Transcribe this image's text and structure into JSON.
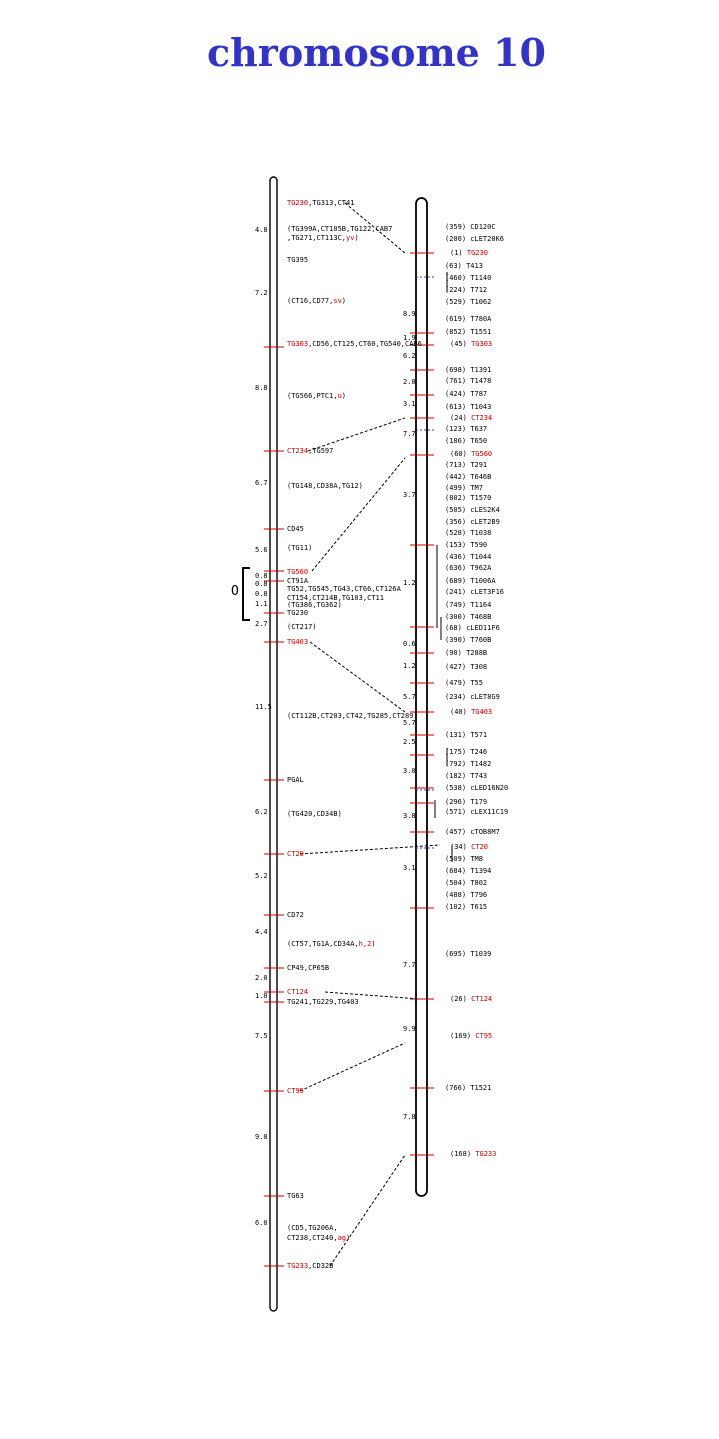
{
  "title": "chromosome 10",
  "colors": {
    "title": "#3333cc",
    "locus_highlight": "#cc0000",
    "tick": "#cc0000",
    "line": "#000000"
  },
  "left_map": {
    "distances": [
      "4.8",
      "7.2",
      "8.8",
      "6.7",
      "5.6",
      "0.8",
      "0.8",
      "0.8",
      "1.1",
      "2.7",
      "11.5",
      "6.2",
      "5.2",
      "4.4",
      "2.0",
      "1.0",
      "7.5",
      "9.0",
      "6.0"
    ],
    "loci": [
      {
        "segments": [
          {
            "text": "TG230",
            "red": true
          },
          {
            "text": ",TG313,CT41",
            "red": false
          }
        ]
      },
      {
        "segments": [
          {
            "text": "(TG399A,CT105B,TG122,CAB7",
            "red": false
          }
        ]
      },
      {
        "segments": [
          {
            "text": ",TG271,CT113C,",
            "red": false
          },
          {
            "text": "yv",
            "red": true
          },
          {
            "text": ")",
            "red": false
          }
        ]
      },
      {
        "segments": [
          {
            "text": "TG395",
            "red": false
          }
        ]
      },
      {
        "segments": [
          {
            "text": "(CT16,CD77,",
            "red": false
          },
          {
            "text": "sv",
            "red": true
          },
          {
            "text": ")",
            "red": false
          }
        ]
      },
      {
        "segments": [
          {
            "text": "TG303",
            "red": true
          },
          {
            "text": ",CD56,CT125,CT60,TG540,CAB6",
            "red": false
          }
        ]
      },
      {
        "segments": [
          {
            "text": "(TG566,PTC1,",
            "red": false
          },
          {
            "text": "u",
            "red": true
          },
          {
            "text": ")",
            "red": false
          }
        ]
      },
      {
        "segments": [
          {
            "text": "CT234",
            "red": true
          },
          {
            "text": ",TG597",
            "red": false
          }
        ]
      },
      {
        "segments": [
          {
            "text": "(TG148,CD38A,TG12)",
            "red": false
          }
        ]
      },
      {
        "segments": [
          {
            "text": "CD45",
            "red": false
          }
        ]
      },
      {
        "segments": [
          {
            "text": "(TG11)",
            "red": false
          }
        ]
      },
      {
        "segments": [
          {
            "text": "TG560",
            "red": true
          }
        ]
      },
      {
        "segments": [
          {
            "text": "CT91A",
            "red": false
          }
        ]
      },
      {
        "segments": [
          {
            "text": "TG52,TG545,TG43,CT66,CT126A",
            "red": false
          }
        ]
      },
      {
        "segments": [
          {
            "text": "CT154,CT214B,TG103,CT11",
            "red": false
          }
        ]
      },
      {
        "segments": [
          {
            "text": "(TG386,TG362)",
            "red": false
          }
        ]
      },
      {
        "segments": [
          {
            "text": "TG230",
            "red": false
          }
        ]
      },
      {
        "segments": [
          {
            "text": "(CT217)",
            "red": false
          }
        ]
      },
      {
        "segments": [
          {
            "text": "TG403",
            "red": true
          }
        ]
      },
      {
        "segments": [
          {
            "text": "(CT112B,CT203,CT42,TG285,CT289)",
            "red": false
          }
        ]
      },
      {
        "segments": [
          {
            "text": "PGAL",
            "red": false
          }
        ]
      },
      {
        "segments": [
          {
            "text": "(TG420,CD34B)",
            "red": false
          }
        ]
      },
      {
        "segments": [
          {
            "text": "CT20",
            "red": true
          }
        ]
      },
      {
        "segments": [
          {
            "text": "CD72",
            "red": false
          }
        ]
      },
      {
        "segments": [
          {
            "text": "(CT57,TG1A,CD34A,",
            "red": false
          },
          {
            "text": "h,2",
            "red": true
          },
          {
            "text": ")",
            "red": false
          }
        ]
      },
      {
        "segments": [
          {
            "text": "CP49,CP65B",
            "red": false
          }
        ]
      },
      {
        "segments": [
          {
            "text": "CT124",
            "red": true
          }
        ]
      },
      {
        "segments": [
          {
            "text": "TG241,TG229,TG403",
            "red": false
          }
        ]
      },
      {
        "segments": [
          {
            "text": "CT95",
            "red": true
          }
        ]
      },
      {
        "segments": [
          {
            "text": "TG63",
            "red": false
          }
        ]
      },
      {
        "segments": [
          {
            "text": "(CD5,TG206A,",
            "red": false
          }
        ]
      },
      {
        "segments": [
          {
            "text": "CT238,CT240,",
            "red": false
          },
          {
            "text": "ag",
            "red": true
          },
          {
            "text": ")",
            "red": false
          }
        ]
      },
      {
        "segments": [
          {
            "text": "TG233",
            "red": true
          },
          {
            "text": ",CD32B",
            "red": false
          }
        ]
      }
    ]
  },
  "right_map": {
    "distances": [
      "8.9",
      "1.9",
      "6.2",
      "2.0",
      "3.1",
      "7.7",
      "3.7",
      "1.2",
      "0.6",
      "1.2",
      "5.7",
      "5.7",
      "2.5",
      "3.0",
      "3.8",
      "3.1",
      "7.7",
      "9.9",
      "7.8"
    ],
    "loci": [
      {
        "count": "(359)",
        "name": "CD120C",
        "red": false
      },
      {
        "count": "(200)",
        "name": "cLET20K6",
        "red": false
      },
      {
        "count": "(1)",
        "name": "TG230",
        "red": true
      },
      {
        "count": "(63)",
        "name": "T413",
        "red": false
      },
      {
        "count": "(460)",
        "name": "T1140",
        "red": false
      },
      {
        "count": "(224)",
        "name": "T712",
        "red": false
      },
      {
        "count": "(529)",
        "name": "T1062",
        "red": false
      },
      {
        "count": "(619)",
        "name": "T780A",
        "red": false
      },
      {
        "count": "(852)",
        "name": "T1551",
        "red": false
      },
      {
        "count": "(45)",
        "name": "TG303",
        "red": true
      },
      {
        "count": "(698)",
        "name": "T1391",
        "red": false
      },
      {
        "count": "(761)",
        "name": "T1478",
        "red": false
      },
      {
        "count": "(424)",
        "name": "T787",
        "red": false
      },
      {
        "count": "(613)",
        "name": "T1043",
        "red": false
      },
      {
        "count": "(24)",
        "name": "CT234",
        "red": true
      },
      {
        "count": "(123)",
        "name": "T637",
        "red": false
      },
      {
        "count": "(186)",
        "name": "T650",
        "red": false
      },
      {
        "count": "(60)",
        "name": "TG560",
        "red": true
      },
      {
        "count": "(713)",
        "name": "T291",
        "red": false
      },
      {
        "count": "(442)",
        "name": "T646B",
        "red": false
      },
      {
        "count": "(499)",
        "name": "TM7",
        "red": false
      },
      {
        "count": "(802)",
        "name": "T1570",
        "red": false
      },
      {
        "count": "(505)",
        "name": "cLES2K4",
        "red": false
      },
      {
        "count": "(356)",
        "name": "cLET2B9",
        "red": false
      },
      {
        "count": "(528)",
        "name": "T1038",
        "red": false
      },
      {
        "count": "(153)",
        "name": "T590",
        "red": false
      },
      {
        "count": "(436)",
        "name": "T1044",
        "red": false
      },
      {
        "count": "(636)",
        "name": "T962A",
        "red": false
      },
      {
        "count": "(689)",
        "name": "T1006A",
        "red": false
      },
      {
        "count": "(241)",
        "name": "cLET3F16",
        "red": false
      },
      {
        "count": "(749)",
        "name": "T1164",
        "red": false
      },
      {
        "count": "(300)",
        "name": "T468B",
        "red": false
      },
      {
        "count": "(68)",
        "name": "cLED11F6",
        "red": false
      },
      {
        "count": "(390)",
        "name": "T760B",
        "red": false
      },
      {
        "count": "(90)",
        "name": "T288B",
        "red": false
      },
      {
        "count": "(427)",
        "name": "T308",
        "red": false
      },
      {
        "count": "(479)",
        "name": "T55",
        "red": false
      },
      {
        "count": "(234)",
        "name": "cLET8G9",
        "red": false
      },
      {
        "count": "(40)",
        "name": "TG403",
        "red": true
      },
      {
        "count": "(131)",
        "name": "T571",
        "red": false
      },
      {
        "count": "(175)",
        "name": "T246",
        "red": false
      },
      {
        "count": "(792)",
        "name": "T1482",
        "red": false
      },
      {
        "count": "(182)",
        "name": "T743",
        "red": false
      },
      {
        "count": "(538)",
        "name": "cLED16N20",
        "red": false
      },
      {
        "count": "(296)",
        "name": "T179",
        "red": false
      },
      {
        "count": "(571)",
        "name": "cLEX11C19",
        "red": false
      },
      {
        "count": "(457)",
        "name": "cTOB8M7",
        "red": false
      },
      {
        "count": "(34)",
        "name": "CT20",
        "red": true
      },
      {
        "count": "(509)",
        "name": "TM8",
        "red": false
      },
      {
        "count": "(684)",
        "name": "T1394",
        "red": false
      },
      {
        "count": "(504)",
        "name": "T802",
        "red": false
      },
      {
        "count": "(488)",
        "name": "T796",
        "red": false
      },
      {
        "count": "(102)",
        "name": "T615",
        "red": false
      },
      {
        "count": "(695)",
        "name": "T1039",
        "red": false
      },
      {
        "count": "(26)",
        "name": "CT124",
        "red": true
      },
      {
        "count": "(169)",
        "name": "CT95",
        "red": true
      },
      {
        "count": "(766)",
        "name": "T1521",
        "red": false
      },
      {
        "count": "(168)",
        "name": "TG233",
        "red": true
      }
    ]
  },
  "centromere_label": "O"
}
